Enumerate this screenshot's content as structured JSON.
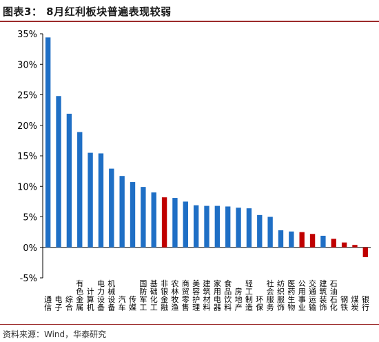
{
  "header": {
    "title": "图表3：  8月红利板块普遍表现较弱"
  },
  "footer": {
    "source": "资料来源：Wind，华泰研究"
  },
  "colors": {
    "positive_default": "#1f6fc5",
    "highlight": "#c00000",
    "axis": "#000000",
    "header_rule": "#9c2a2a"
  },
  "chart_data": {
    "type": "bar",
    "title": "",
    "xlabel": "",
    "ylabel": "",
    "ylim": [
      -5,
      35
    ],
    "yticks": [
      -5,
      0,
      5,
      10,
      15,
      20,
      25,
      30,
      35
    ],
    "ytick_labels": [
      "-5%",
      "0%",
      "5%",
      "10%",
      "15%",
      "20%",
      "25%",
      "30%",
      "35%"
    ],
    "grid": false,
    "legend": "none",
    "categories": [
      "通信",
      "电子",
      "综合",
      "有色金属",
      "计算机",
      "电力设备",
      "机械设备",
      "汽车",
      "传媒",
      "国防军工",
      "基础化工",
      "非银金融",
      "农林牧渔",
      "商贸零售",
      "美容护理",
      "建筑材料",
      "家用电器",
      "食品饮料",
      "房地产",
      "轻工制造",
      "环保",
      "社会服务",
      "纺织服饰",
      "医药生物",
      "公用事业",
      "交通运输",
      "建筑装饰",
      "石油石化",
      "钢铁",
      "煤炭",
      "银行"
    ],
    "values": [
      34.4,
      24.8,
      21.9,
      18.9,
      15.5,
      15.4,
      12.9,
      11.7,
      10.7,
      9.9,
      9.0,
      8.2,
      8.1,
      7.5,
      6.9,
      6.8,
      6.8,
      6.7,
      6.5,
      6.4,
      5.3,
      5.0,
      2.8,
      2.6,
      2.5,
      2.2,
      1.9,
      1.4,
      0.8,
      0.4,
      -1.6
    ],
    "highlight": [
      false,
      false,
      false,
      false,
      false,
      false,
      false,
      false,
      false,
      false,
      false,
      true,
      false,
      false,
      false,
      false,
      false,
      false,
      false,
      false,
      false,
      false,
      false,
      false,
      true,
      true,
      false,
      true,
      true,
      true,
      true
    ]
  }
}
